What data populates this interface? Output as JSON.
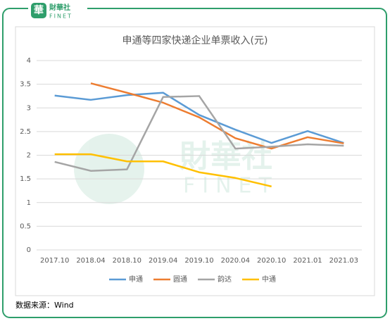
{
  "logo": {
    "name": "財華社",
    "en": "FINET"
  },
  "chart_data": {
    "type": "line",
    "title": "申通等四家快递企业单票收入(元)",
    "categories": [
      "2017.10",
      "2018.04",
      "2018.10",
      "2019.04",
      "2019.10",
      "2020.04",
      "2020.10",
      "2021.01",
      "2021.03"
    ],
    "series": [
      {
        "name": "申通",
        "color": "#5b9bd5",
        "values": [
          3.26,
          3.17,
          3.27,
          3.32,
          2.85,
          2.54,
          2.26,
          2.51,
          2.26
        ]
      },
      {
        "name": "圆通",
        "color": "#ed7d31",
        "values": [
          null,
          3.52,
          3.32,
          3.11,
          2.8,
          2.36,
          2.14,
          2.38,
          2.25
        ]
      },
      {
        "name": "韵达",
        "color": "#a5a5a5",
        "values": [
          1.86,
          1.67,
          1.7,
          3.23,
          3.25,
          2.14,
          2.18,
          2.23,
          2.2
        ]
      },
      {
        "name": "中通",
        "color": "#ffc000",
        "values": [
          2.02,
          2.02,
          1.87,
          1.87,
          1.64,
          1.52,
          1.34,
          null,
          null
        ]
      }
    ],
    "ylim": [
      0,
      4
    ],
    "yticks": [
      0,
      0.5,
      1,
      1.5,
      2,
      2.5,
      3,
      3.5,
      4
    ],
    "grid": true,
    "legend": "bottom"
  },
  "source": "数据来源：Wind"
}
